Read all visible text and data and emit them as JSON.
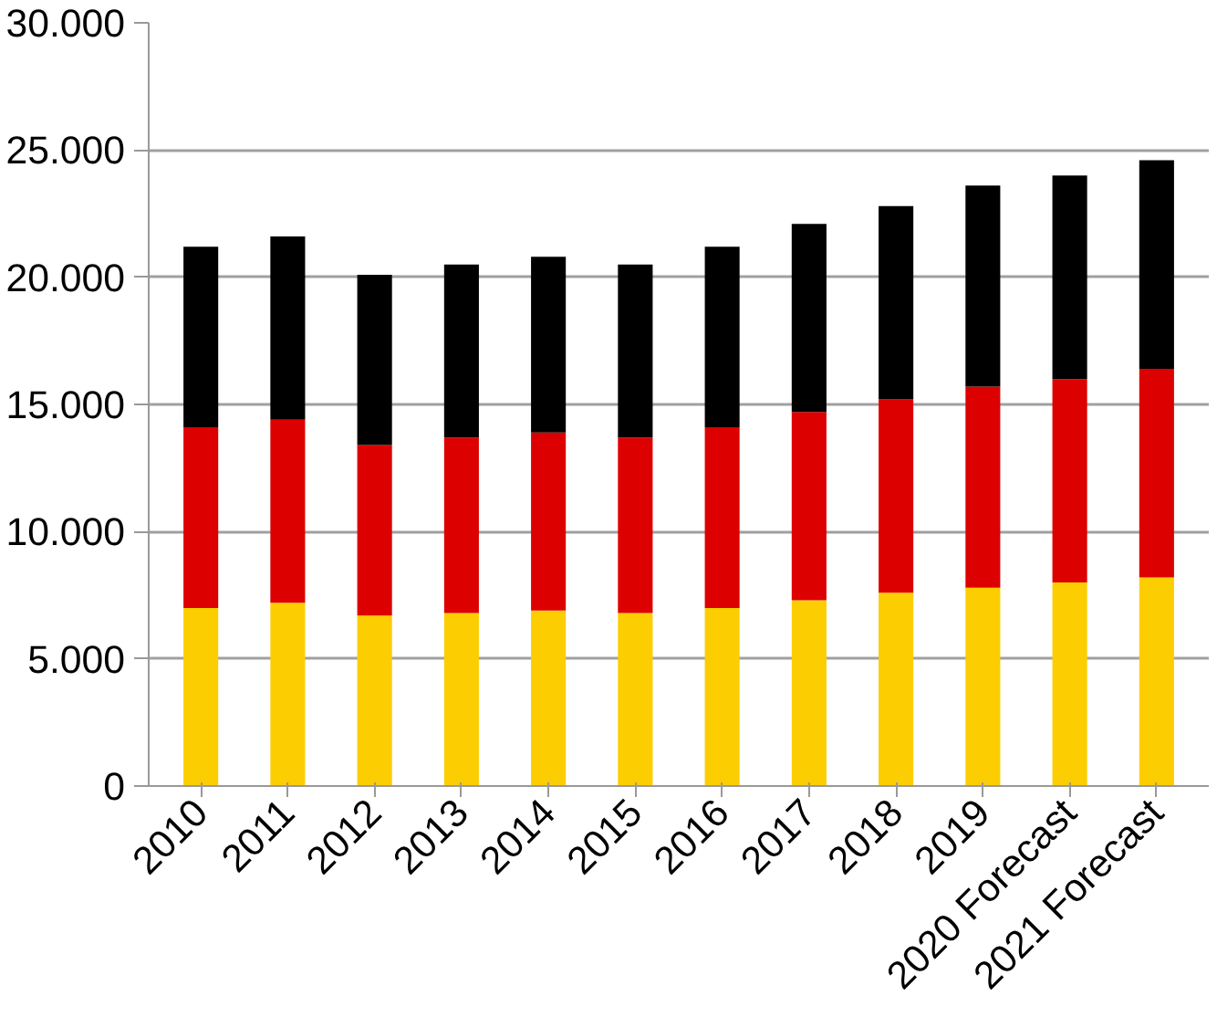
{
  "chart_data": {
    "type": "bar",
    "stacked": true,
    "categories": [
      "2010",
      "2011",
      "2012",
      "2013",
      "2014",
      "2015",
      "2016",
      "2017",
      "2018",
      "2019",
      "2020 Forecast",
      "2021 Forecast"
    ],
    "series": [
      {
        "color": "#fccd00",
        "values": [
          7000,
          7200,
          6700,
          6800,
          6900,
          6800,
          7000,
          7300,
          7600,
          7800,
          8000,
          8200
        ]
      },
      {
        "color": "#dd0000",
        "values": [
          7100,
          7200,
          6700,
          6900,
          7000,
          6900,
          7100,
          7400,
          7600,
          7900,
          8000,
          8200
        ]
      },
      {
        "color": "#000000",
        "values": [
          7100,
          7200,
          6700,
          6800,
          6900,
          6800,
          7100,
          7400,
          7600,
          7900,
          8000,
          8200
        ]
      }
    ],
    "ylim": [
      0,
      30000
    ],
    "yticks": [
      {
        "value": 0,
        "label": "0"
      },
      {
        "value": 5000,
        "label": "5.000"
      },
      {
        "value": 10000,
        "label": "10.000"
      },
      {
        "value": 15000,
        "label": "15.000"
      },
      {
        "value": 20000,
        "label": "20.000"
      },
      {
        "value": 25000,
        "label": "25.000"
      },
      {
        "value": 30000,
        "label": "30.000"
      }
    ],
    "grid": "y"
  }
}
